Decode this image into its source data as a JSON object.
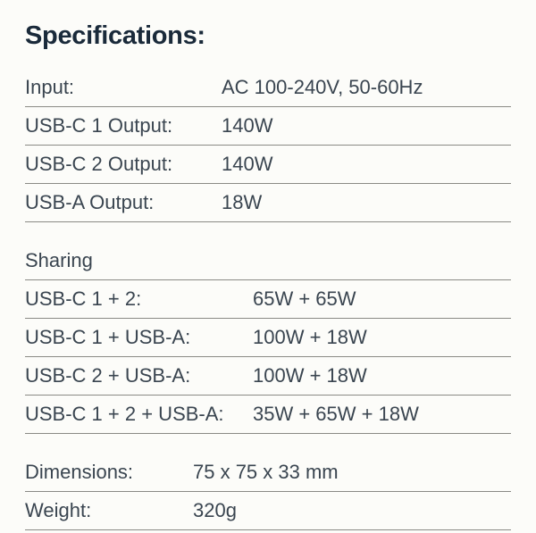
{
  "title": "Specifications:",
  "main_section": {
    "rows": [
      {
        "label": "Input:",
        "value": "AC 100-240V, 50-60Hz"
      },
      {
        "label": "USB-C 1 Output:",
        "value": "140W"
      },
      {
        "label": "USB-C 2 Output:",
        "value": "140W"
      },
      {
        "label": "USB-A Output:",
        "value": "18W"
      }
    ]
  },
  "sharing_section": {
    "heading": "Sharing",
    "rows": [
      {
        "label": "USB-C 1 + 2:",
        "value": "65W + 65W"
      },
      {
        "label": "USB-C 1 + USB-A:",
        "value": "100W + 18W"
      },
      {
        "label": "USB-C 2 + USB-A:",
        "value": "100W + 18W"
      },
      {
        "label": "USB-C 1 + 2 + USB-A:",
        "value": "35W + 65W + 18W"
      }
    ]
  },
  "physical_section": {
    "rows": [
      {
        "label": "Dimensions:",
        "value": "75 x 75 x 33 mm"
      },
      {
        "label": "Weight:",
        "value": "320g"
      }
    ]
  },
  "style": {
    "type": "spec-table",
    "background_color": "#fcfcf9",
    "title_color": "#1a2a3a",
    "text_color": "#3a4550",
    "border_color": "#8a8a85",
    "title_fontsize": 29,
    "row_fontsize": 22,
    "title_fontweight": 700,
    "row_fontweight": 400,
    "section_gap": 22,
    "row_padding_v": 8,
    "label_widths": {
      "main": 220,
      "sharing": 255,
      "physical": 188
    }
  }
}
